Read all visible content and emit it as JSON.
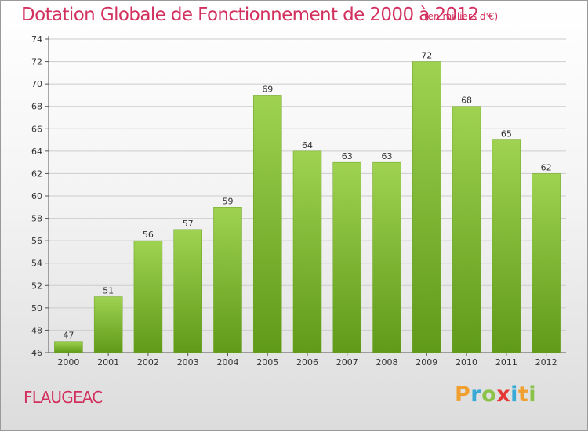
{
  "header": {
    "title": "Dotation Globale de Fonctionnement de 2000 à 2012",
    "subtitle": "(en milliers d'€)"
  },
  "footer": {
    "commune": "FLAUGEAC",
    "brand": "Proxiti"
  },
  "colors": {
    "title": "#d2315f",
    "bar_top": "#9fd251",
    "bar_bottom": "#5f9a18",
    "grid": "#cccccc"
  },
  "chart_data": {
    "type": "bar",
    "categories": [
      "2000",
      "2001",
      "2002",
      "2003",
      "2004",
      "2005",
      "2006",
      "2007",
      "2008",
      "2009",
      "2010",
      "2011",
      "2012"
    ],
    "values": [
      47,
      51,
      56,
      57,
      59,
      69,
      64,
      63,
      63,
      72,
      68,
      65,
      62
    ],
    "ylim": [
      46,
      74
    ],
    "yticks": [
      46,
      48,
      50,
      52,
      54,
      56,
      58,
      60,
      62,
      64,
      66,
      68,
      70,
      72,
      74
    ],
    "grid": true,
    "data_labels": true
  }
}
